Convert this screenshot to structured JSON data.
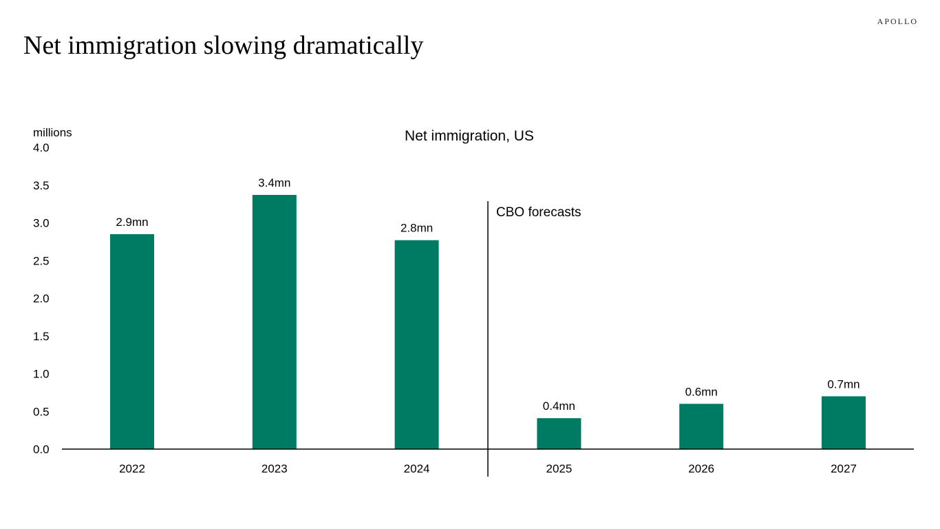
{
  "brand": "APOLLO",
  "slide_title": "Net immigration slowing dramatically",
  "colors": {
    "bar": "#007B63",
    "axis": "#000000"
  },
  "chart_data": {
    "type": "bar",
    "title": "Net immigration, US",
    "unit_label": "millions",
    "categories": [
      "2022",
      "2023",
      "2024",
      "2025",
      "2026",
      "2027"
    ],
    "values": [
      2.85,
      3.37,
      2.77,
      0.41,
      0.6,
      0.7
    ],
    "data_labels": [
      "2.9mn",
      "3.4mn",
      "2.8mn",
      "0.4mn",
      "0.6mn",
      "0.7mn"
    ],
    "ylim": [
      0,
      4
    ],
    "yticks": [
      "0.0",
      "0.5",
      "1.0",
      "1.5",
      "2.0",
      "2.5",
      "3.0",
      "3.5",
      "4.0"
    ],
    "annotation": "CBO forecasts",
    "grid": false,
    "legend": "none"
  }
}
